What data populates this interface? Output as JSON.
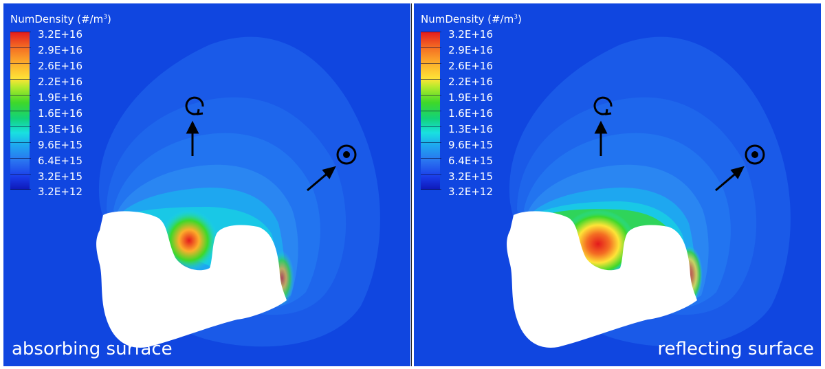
{
  "legend": {
    "title": "NumDensity (#/m",
    "title_sup": "3",
    "title_close": ")",
    "values": [
      "3.2E+16",
      "2.9E+16",
      "2.6E+16",
      "2.2E+16",
      "1.9E+16",
      "1.6E+16",
      "1.3E+16",
      "9.6E+15",
      "6.4E+15",
      "3.2E+15",
      "3.2E+12"
    ]
  },
  "panels": [
    {
      "caption": "absorbing surface"
    },
    {
      "caption": "reflecting surface"
    }
  ],
  "colors": {
    "background_field": "#1046e0",
    "nucleus": "#ffffff",
    "arrows": "#000000"
  },
  "icons": [
    "rotation-axis-icon",
    "sun-direction-icon"
  ]
}
